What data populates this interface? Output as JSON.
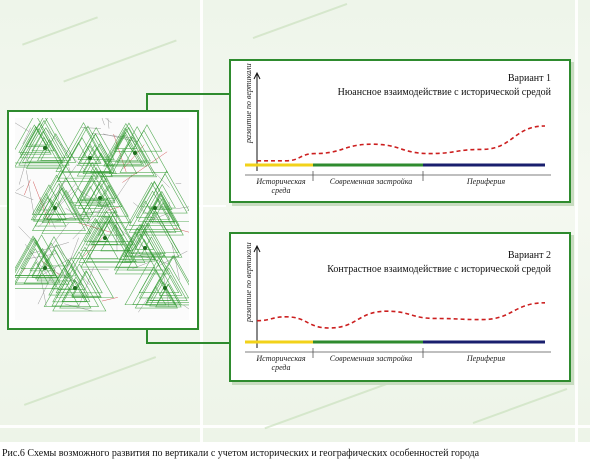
{
  "figure": {
    "caption": "Рис.6 Схемы возможного развития по вертикали с учетом исторических и географических особенностей города"
  },
  "colors": {
    "frame": "#2e8b2e",
    "historic": "#f2d21a",
    "modern": "#2e8b2e",
    "periphery": "#1a1f6e",
    "curve": "#cc1f1f"
  },
  "panels": [
    {
      "variant": "Вариант 1",
      "subtitle": "Нюансное взаимодействие с исторической средой",
      "ylabel": "развитие по вертикали",
      "segments": [
        "Историческая среда",
        "Современная застройка",
        "Периферия"
      ],
      "curve": [
        [
          0.0,
          0.92
        ],
        [
          0.1,
          0.92
        ],
        [
          0.2,
          0.78
        ],
        [
          0.4,
          0.6
        ],
        [
          0.6,
          0.78
        ],
        [
          0.78,
          0.7
        ],
        [
          1.0,
          0.25
        ]
      ]
    },
    {
      "variant": "Вариант 2",
      "subtitle": "Контрастное взаимодействие с исторической средой",
      "ylabel": "развитие по вертикали",
      "segments": [
        "Историческая среда",
        "Современная застройка",
        "Периферия"
      ],
      "curve": [
        [
          0.0,
          0.62
        ],
        [
          0.1,
          0.55
        ],
        [
          0.25,
          0.75
        ],
        [
          0.45,
          0.45
        ],
        [
          0.62,
          0.58
        ],
        [
          0.78,
          0.6
        ],
        [
          1.0,
          0.3
        ]
      ]
    }
  ]
}
